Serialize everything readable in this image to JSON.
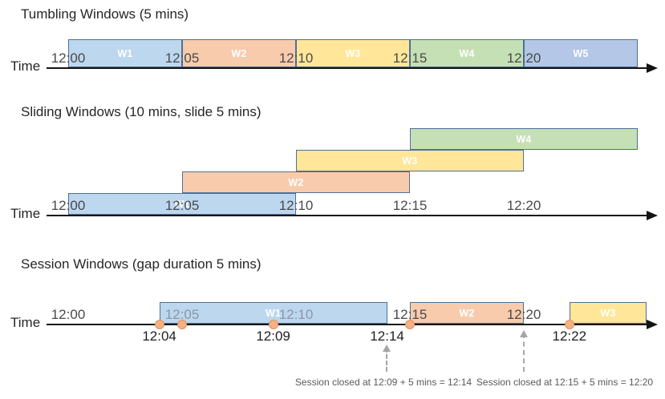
{
  "palette": {
    "border": "#4d7198",
    "blue": "#BDD7EE",
    "orange": "#F8CBAD",
    "yellow": "#FFE699",
    "green": "#C5E0B4",
    "periwinkle": "#B4C7E7",
    "dot_fill": "#F4B183",
    "dot_border": "#e2905f",
    "axis": "#141414",
    "tick_text": "#4a4a4a",
    "tick_text_muted": "#8b96a8",
    "note_text": "#595959"
  },
  "rows": [
    {
      "id": "tumbling",
      "title": "Tumbling Windows (5 mins)",
      "time_label": "Time",
      "ticks": [
        {
          "min": 0,
          "label": "12:00"
        },
        {
          "min": 5,
          "label": "12:05"
        },
        {
          "min": 10,
          "label": "12:10"
        },
        {
          "min": 15,
          "label": "12:15"
        },
        {
          "min": 20,
          "label": "12:20"
        }
      ],
      "windows": [
        {
          "label": "W1",
          "start": 0,
          "end": 5,
          "color": "blue",
          "level": 0
        },
        {
          "label": "W2",
          "start": 5,
          "end": 10,
          "color": "orange",
          "level": 0
        },
        {
          "label": "W3",
          "start": 10,
          "end": 15,
          "color": "yellow",
          "level": 0
        },
        {
          "label": "W4",
          "start": 15,
          "end": 20,
          "color": "green",
          "level": 0
        },
        {
          "label": "W5",
          "start": 20,
          "end": 25,
          "color": "periwinkle",
          "level": 0
        }
      ]
    },
    {
      "id": "sliding",
      "title": "Sliding Windows (10 mins, slide 5 mins)",
      "time_label": "Time",
      "ticks": [
        {
          "min": 0,
          "label": "12:00"
        },
        {
          "min": 5,
          "label": "12:05"
        },
        {
          "min": 10,
          "label": "12:10"
        },
        {
          "min": 15,
          "label": "12:15"
        },
        {
          "min": 20,
          "label": "12:20"
        }
      ],
      "windows": [
        {
          "label": "W1",
          "start": 0,
          "end": 10,
          "color": "blue",
          "level": 0
        },
        {
          "label": "W2",
          "start": 5,
          "end": 15,
          "color": "orange",
          "level": 1
        },
        {
          "label": "W3",
          "start": 10,
          "end": 20,
          "color": "yellow",
          "level": 2
        },
        {
          "label": "W4",
          "start": 15,
          "end": 25,
          "color": "green",
          "level": 3
        }
      ]
    },
    {
      "id": "session",
      "title": "Session Windows (gap duration 5 mins)",
      "time_label": "Time",
      "ticks": [
        {
          "min": 0,
          "label": "12:00"
        },
        {
          "min": 5,
          "label": "12:05",
          "muted": true
        },
        {
          "min": 10,
          "label": "12:10",
          "muted": true
        },
        {
          "min": 15,
          "label": "12:15"
        },
        {
          "min": 20,
          "label": "12:20"
        }
      ],
      "windows": [
        {
          "label": "W1",
          "start": 4,
          "end": 14,
          "color": "blue",
          "level": 0
        },
        {
          "label": "W2",
          "start": 15,
          "end": 20,
          "color": "orange",
          "level": 0
        },
        {
          "label": "W3",
          "start": 22,
          "end": 25.4,
          "color": "yellow",
          "level": 0
        }
      ],
      "events": [
        {
          "min": 4
        },
        {
          "min": 5
        },
        {
          "min": 9
        },
        {
          "min": 15
        },
        {
          "min": 22
        }
      ],
      "event_labels": [
        {
          "min": 4,
          "label": "12:04"
        },
        {
          "min": 9,
          "label": "12:09"
        },
        {
          "min": 14,
          "label": "12:14"
        },
        {
          "min": 22,
          "label": "12:22"
        }
      ],
      "notes": [
        {
          "text": "Session closed at 12:09 + 5 mins = 12:14"
        },
        {
          "text": "Session closed at 12:15 + 5 mins = 12:20"
        }
      ]
    }
  ]
}
